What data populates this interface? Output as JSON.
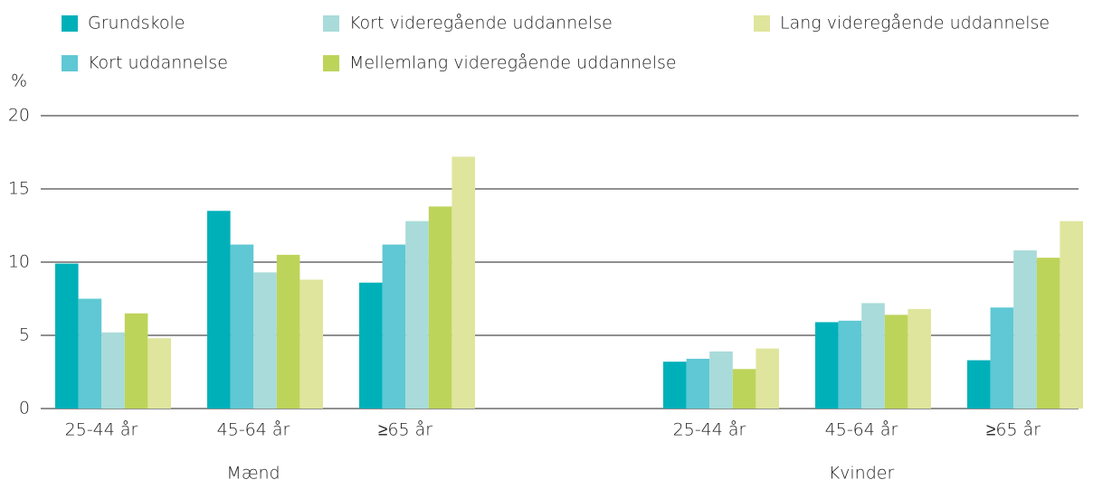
{
  "chart_data": {
    "type": "bar",
    "y_label": "%",
    "groups": [
      "Mænd",
      "Kvinder"
    ],
    "categories": [
      "25-44 år",
      "45-64 år",
      "≥65 år",
      "25-44 år",
      "45-64 år",
      "≥65 år"
    ],
    "series": [
      {
        "name": "Grundskole",
        "color": "#00b0b9",
        "values": [
          9.9,
          13.5,
          8.6,
          3.2,
          5.9,
          3.3
        ]
      },
      {
        "name": "Kort uddannelse",
        "color": "#5fc8d4",
        "values": [
          7.5,
          11.2,
          11.2,
          3.4,
          6.0,
          6.9
        ]
      },
      {
        "name": "Kort videregående uddannelse",
        "color": "#a8dbd9",
        "values": [
          5.2,
          9.3,
          12.8,
          3.9,
          7.2,
          10.8
        ]
      },
      {
        "name": "Mellemlang videregående uddannelse",
        "color": "#bdd45a",
        "values": [
          6.5,
          10.5,
          13.8,
          2.7,
          6.4,
          10.3
        ]
      },
      {
        "name": "Lang videregående uddannelse",
        "color": "#dfe59c",
        "values": [
          4.8,
          8.8,
          17.2,
          4.1,
          6.8,
          12.8
        ]
      }
    ],
    "ylim": [
      0,
      20
    ],
    "yticks": [
      0,
      5,
      10,
      15,
      20
    ],
    "grid": true
  }
}
